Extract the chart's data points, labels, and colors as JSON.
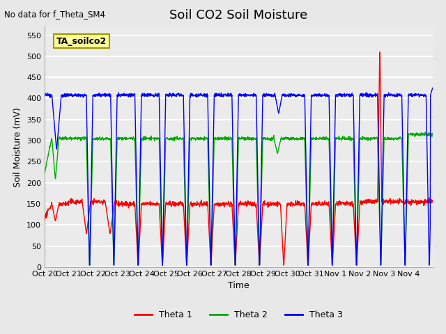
{
  "title": "Soil CO2 Soil Moisture",
  "no_data_text": "No data for f_Theta_SM4",
  "ta_label": "TA_soilco2",
  "ylabel": "Soil Moisture (mV)",
  "xlabel": "Time",
  "ylim": [
    0,
    570
  ],
  "yticks": [
    0,
    50,
    100,
    150,
    200,
    250,
    300,
    350,
    400,
    450,
    500,
    550
  ],
  "x_tick_labels": [
    "Oct 20",
    "Oct 21",
    "Oct 22",
    "Oct 23",
    "Oct 24",
    "Oct 25",
    "Oct 26",
    "Oct 27",
    "Oct 28",
    "Oct 29",
    "Oct 30",
    "Oct 31",
    "Nov 1",
    "Nov 2",
    "Nov 3",
    "Nov 4"
  ],
  "colors": {
    "theta1": "#FF0000",
    "theta2": "#00AA00",
    "theta3": "#0000FF",
    "background": "#E8E8E8",
    "ta_box_bg": "#FFFF99",
    "ta_box_border": "#999900"
  },
  "legend_labels": [
    "Theta 1",
    "Theta 2",
    "Theta 3"
  ]
}
